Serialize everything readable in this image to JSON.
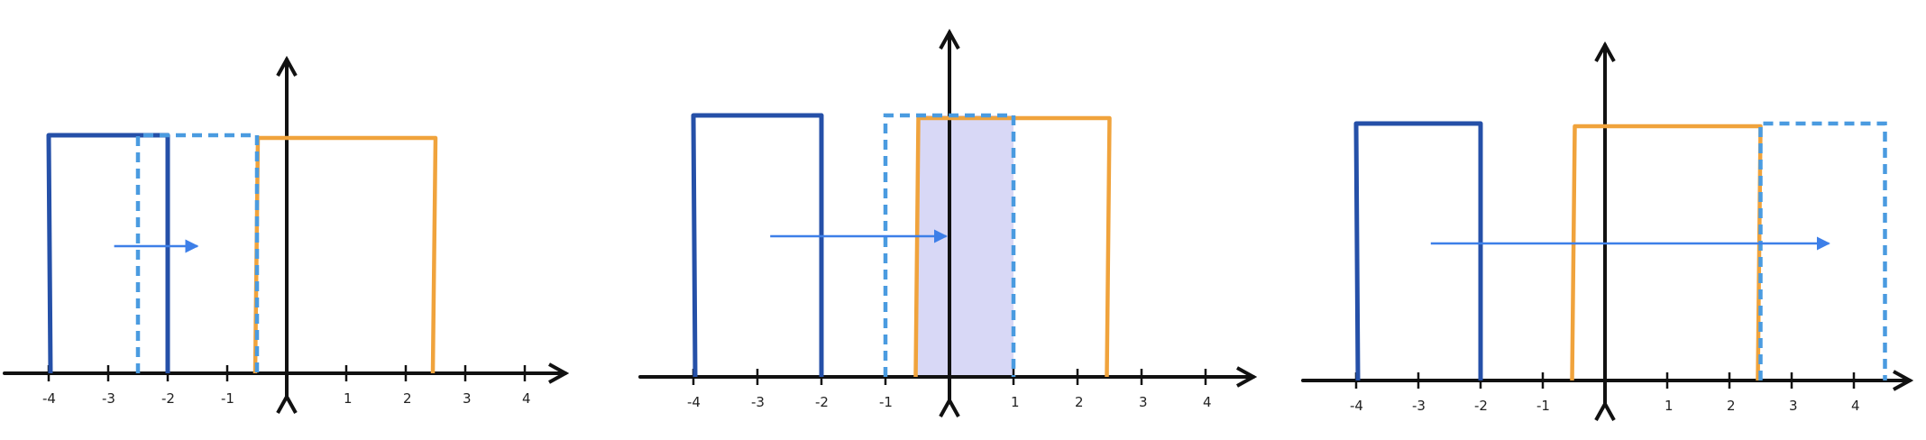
{
  "colors": {
    "axis": "#111111",
    "fixed_pulse": "#2550a8",
    "shifted_pulse": "#4a9be0",
    "orange_pulse": "#f0a33c",
    "overlap_fill": "#d8d8f6",
    "arrow": "#3d7fe8"
  },
  "panels": [
    {
      "name": "panel-1",
      "tick_labels": [
        "-4",
        "-3",
        "-2",
        "-1",
        "1",
        "2",
        "3",
        "4"
      ],
      "fixed_pulse_x": [
        -4,
        -2
      ],
      "shifted_pulse_x": [
        -2.5,
        -0.5
      ],
      "orange_pulse_x": [
        -0.5,
        2.5
      ],
      "overlap": false,
      "arrow_x": [
        -2.9,
        -1.5
      ]
    },
    {
      "name": "panel-2",
      "tick_labels": [
        "-4",
        "-3",
        "-2",
        "-1",
        "1",
        "2",
        "3",
        "4"
      ],
      "fixed_pulse_x": [
        -4,
        -2
      ],
      "shifted_pulse_x": [
        -1,
        1
      ],
      "orange_pulse_x": [
        -0.5,
        2.5
      ],
      "overlap": true,
      "arrow_x": [
        -2.8,
        -0.05
      ]
    },
    {
      "name": "panel-3",
      "tick_labels": [
        "-4",
        "-3",
        "-2",
        "-1",
        "1",
        "2",
        "3",
        "4"
      ],
      "fixed_pulse_x": [
        -4,
        -2
      ],
      "shifted_pulse_x": [
        2.5,
        4.5
      ],
      "orange_pulse_x": [
        -0.5,
        2.5
      ],
      "overlap": false,
      "arrow_x": [
        -2.8,
        3.6
      ]
    }
  ]
}
